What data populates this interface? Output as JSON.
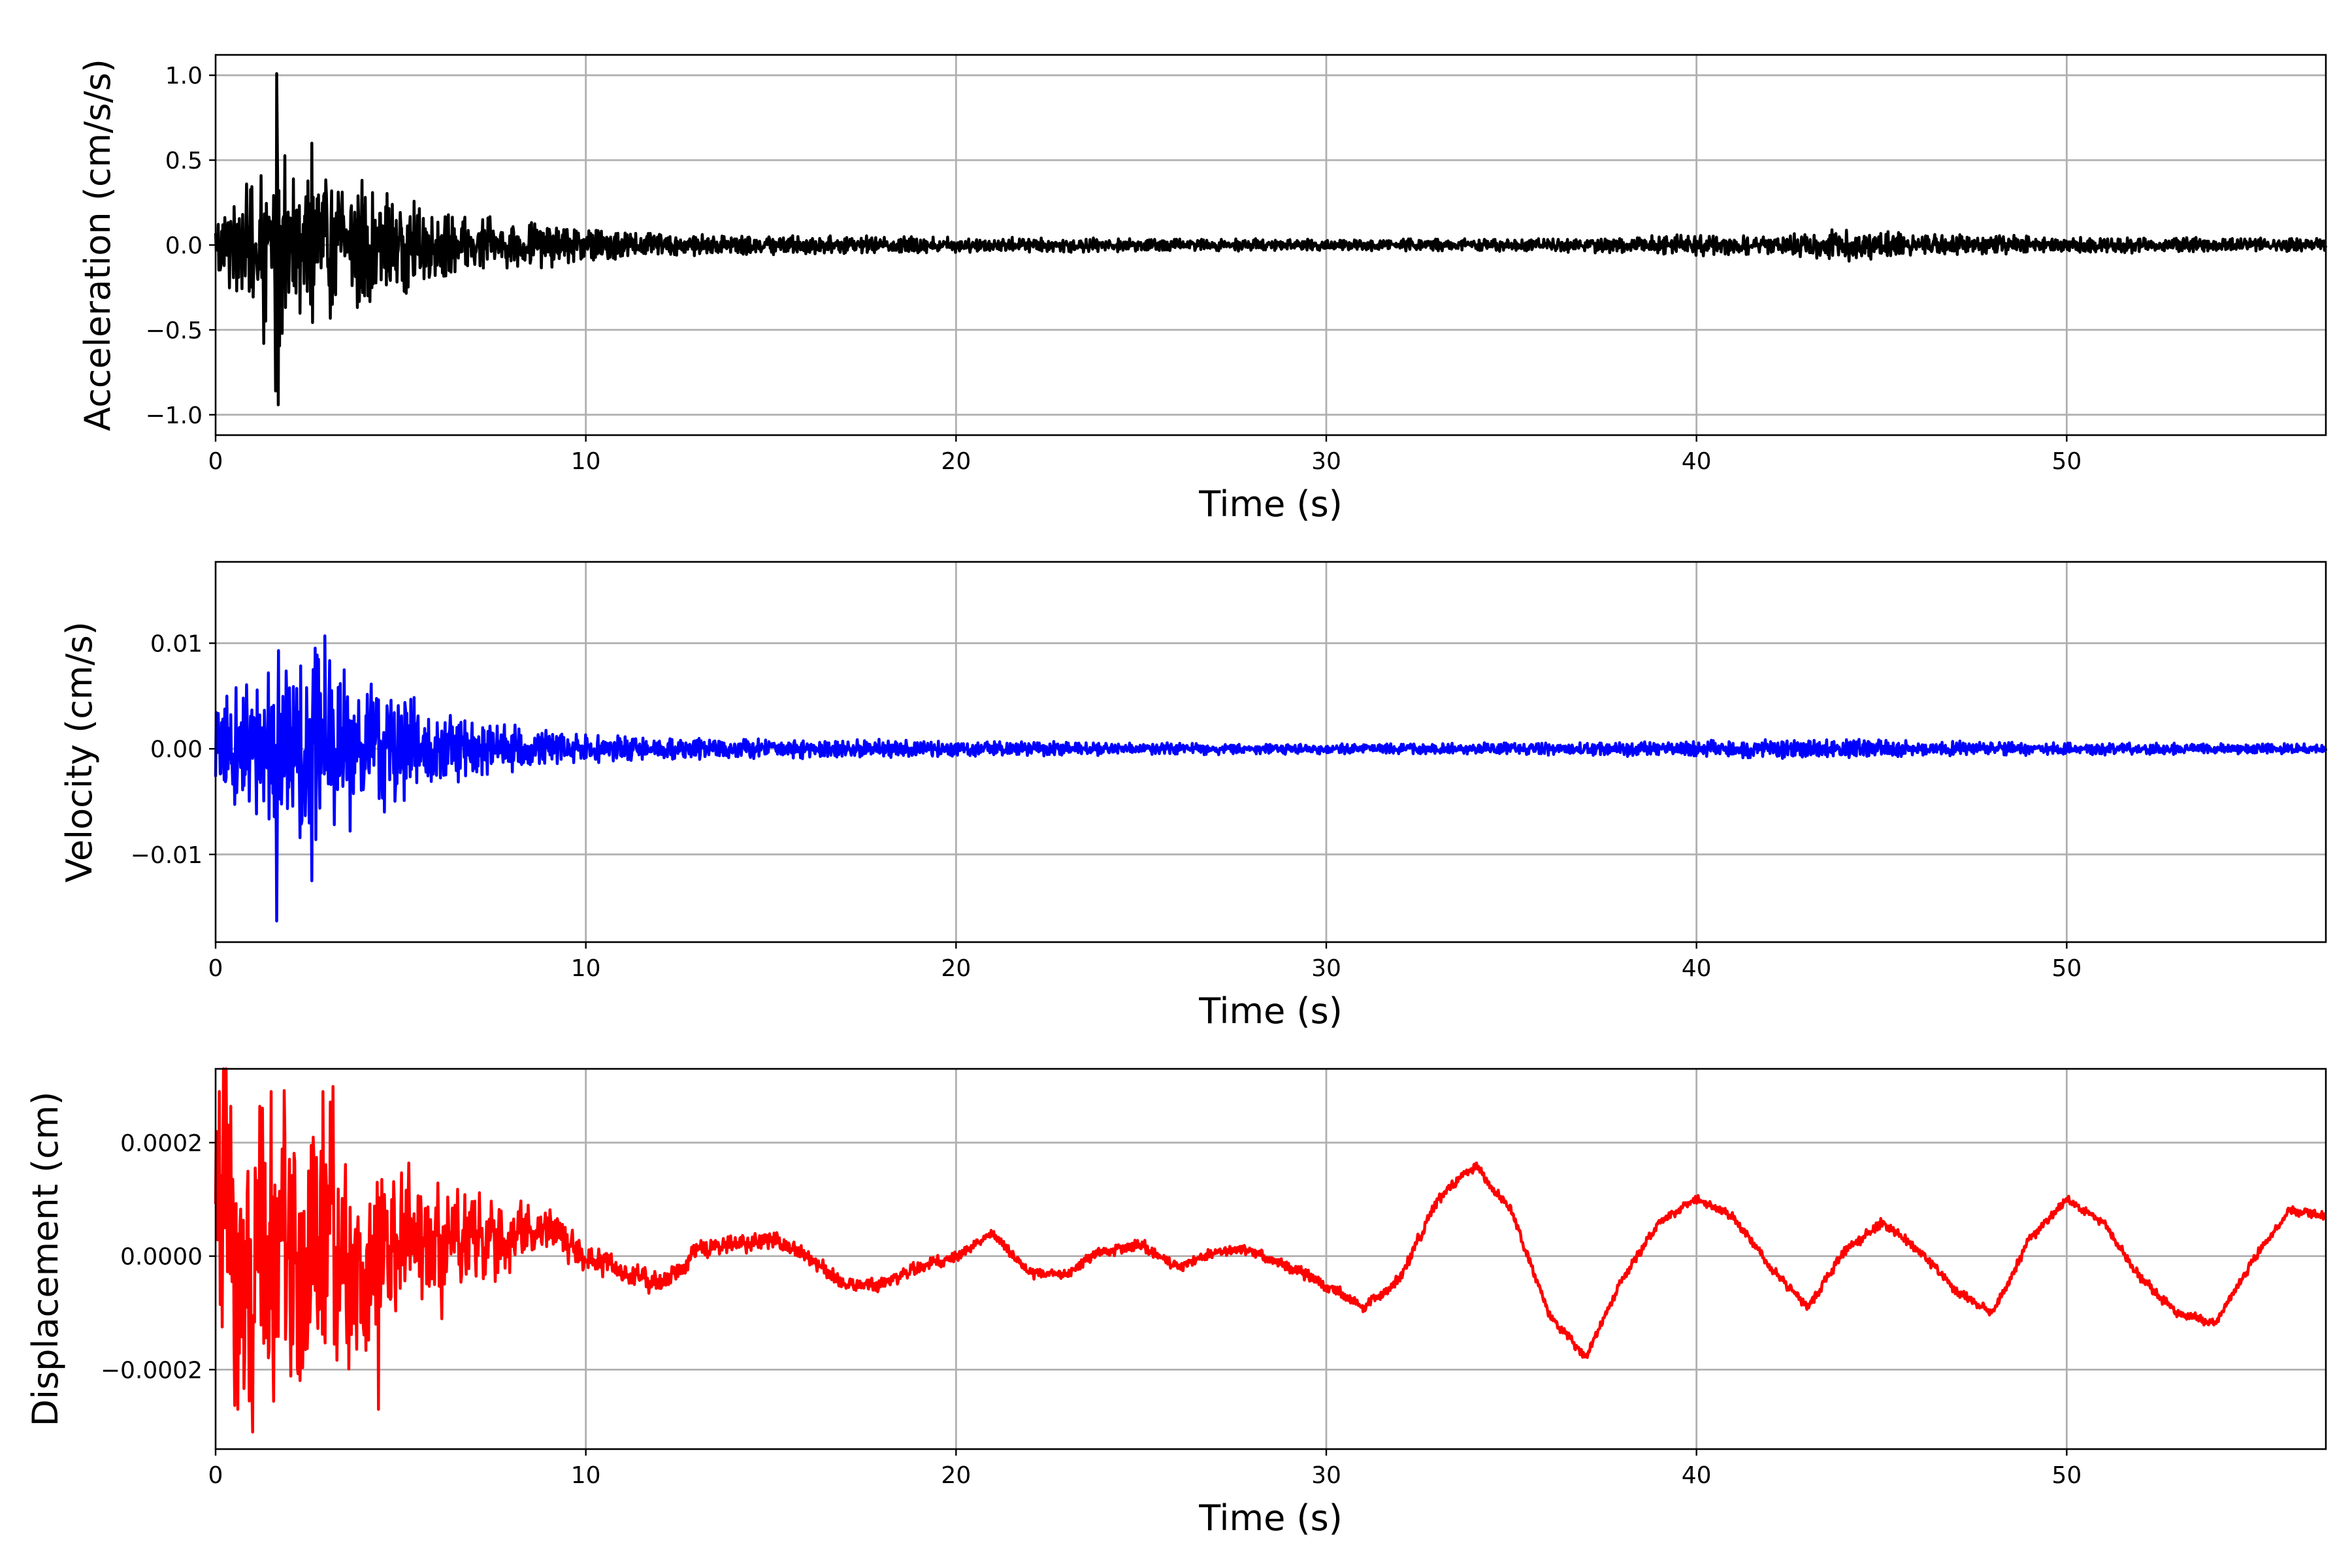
{
  "chart_data": [
    {
      "type": "line",
      "title": "",
      "xlabel": "Time (s)",
      "ylabel": "Acceleration (cm/s/s)",
      "xlim": [
        0,
        57
      ],
      "ylim": [
        -1.12,
        1.12
      ],
      "xticks": [
        0,
        10,
        20,
        30,
        40,
        50
      ],
      "xtick_labels": [
        "0",
        "10",
        "20",
        "30",
        "40",
        "50"
      ],
      "yticks": [
        -1.0,
        -0.5,
        0.0,
        0.5,
        1.0
      ],
      "ytick_labels": [
        "−1.0",
        "−0.5",
        "0.0",
        "0.5",
        "1.0"
      ],
      "grid": true,
      "series": [
        {
          "color": "#000000",
          "x": [
            0,
            0.5,
            1.0,
            1.4,
            1.6,
            1.7,
            2.0,
            2.5,
            2.7,
            3.0,
            3.5,
            4.0,
            4.5,
            5.0,
            6.0,
            7.0,
            8.0,
            9.0,
            10.0,
            12.0,
            15.0,
            20.0,
            25.0,
            30.0,
            35.0,
            38.0,
            40.0,
            42.0,
            44.0,
            46.0,
            50.0,
            55.0,
            57.0
          ],
          "amplitude": [
            0.25,
            0.3,
            0.4,
            0.52,
            0.35,
            1.0,
            0.45,
            0.5,
            0.6,
            0.45,
            0.42,
            0.4,
            0.35,
            0.3,
            0.22,
            0.18,
            0.15,
            0.14,
            0.1,
            0.07,
            0.06,
            0.05,
            0.04,
            0.035,
            0.04,
            0.05,
            0.07,
            0.06,
            0.1,
            0.07,
            0.05,
            0.045,
            0.04
          ],
          "peaks": [
            {
              "x": 1.65,
              "y": 1.01
            },
            {
              "x": 1.62,
              "y": -0.86
            },
            {
              "x": 2.6,
              "y": 0.6
            },
            {
              "x": 1.3,
              "y": -0.58
            }
          ]
        }
      ]
    },
    {
      "type": "line",
      "title": "",
      "xlabel": "Time (s)",
      "ylabel": "Velocity (cm/s)",
      "xlim": [
        0,
        57
      ],
      "ylim": [
        -0.0183,
        0.0177
      ],
      "xticks": [
        0,
        10,
        20,
        30,
        40,
        50
      ],
      "xtick_labels": [
        "0",
        "10",
        "20",
        "30",
        "40",
        "50"
      ],
      "yticks": [
        -0.01,
        0.0,
        0.01
      ],
      "ytick_labels": [
        "−0.01",
        "0.00",
        "0.01"
      ],
      "grid": true,
      "series": [
        {
          "color": "#0000ff",
          "x": [
            0,
            0.5,
            1.0,
            1.6,
            2.0,
            2.6,
            3.0,
            4.0,
            5.0,
            6.0,
            7.0,
            8.0,
            9.0,
            10.0,
            12.0,
            15.0,
            18.0,
            20.0,
            25.0,
            30.0,
            35.0,
            40.0,
            44.0,
            46.0,
            50.0,
            57.0
          ],
          "amplitude": [
            0.005,
            0.006,
            0.008,
            0.0095,
            0.009,
            0.0105,
            0.009,
            0.008,
            0.006,
            0.004,
            0.003,
            0.0025,
            0.002,
            0.0015,
            0.0011,
            0.001,
            0.0009,
            0.0008,
            0.0006,
            0.0005,
            0.0006,
            0.0008,
            0.001,
            0.0008,
            0.0006,
            0.0005
          ],
          "peaks": [
            {
              "x": 1.65,
              "y": -0.0163
            },
            {
              "x": 2.95,
              "y": 0.0107
            },
            {
              "x": 2.6,
              "y": -0.0125
            },
            {
              "x": 1.7,
              "y": 0.0093
            }
          ]
        }
      ]
    },
    {
      "type": "line",
      "title": "",
      "xlabel": "Time (s)",
      "ylabel": "Displacement (cm)",
      "xlim": [
        0,
        57
      ],
      "ylim": [
        -0.00034,
        0.00033
      ],
      "xticks": [
        0,
        10,
        20,
        30,
        40,
        50
      ],
      "xtick_labels": [
        "0",
        "10",
        "20",
        "30",
        "40",
        "50"
      ],
      "yticks": [
        -0.0002,
        0.0,
        0.0002
      ],
      "ytick_labels": [
        "−0.0002",
        "0.0000",
        "0.0002"
      ],
      "grid": true,
      "series": [
        {
          "color": "#ff0000",
          "x": [
            0,
            1,
            2,
            3,
            4,
            5,
            6,
            7,
            8,
            9,
            10,
            11,
            12,
            13,
            14,
            15,
            16,
            17,
            18,
            19,
            20,
            21,
            22,
            23,
            24,
            25,
            26,
            27,
            28,
            29,
            30,
            31,
            32,
            33,
            34,
            35,
            36,
            37,
            38,
            39,
            40,
            41,
            42,
            43,
            44,
            45,
            46,
            47,
            48,
            49,
            50,
            51,
            52,
            53,
            54,
            55,
            56,
            57
          ],
          "y": [
            0.0001,
            -5e-05,
            0.0,
            5e-05,
            -2e-05,
            2e-05,
            0.0,
            2e-05,
            4e-05,
            5e-05,
            0.0,
            -3e-05,
            -5e-05,
            1e-05,
            2e-05,
            3e-05,
            0.0,
            -5e-05,
            -5e-05,
            -2e-05,
            0.0,
            4e-05,
            -3e-05,
            -3e-05,
            1e-05,
            2e-05,
            -2e-05,
            1e-05,
            1e-05,
            -2e-05,
            -5e-05,
            -9e-05,
            -4e-05,
            0.0001,
            0.00016,
            8e-05,
            -0.0001,
            -0.00018,
            -4e-05,
            6e-05,
            0.0001,
            7e-05,
            -2e-05,
            -9e-05,
            1e-05,
            6e-05,
            1e-05,
            -6e-05,
            -0.0001,
            3e-05,
            0.0001,
            6e-05,
            -4e-05,
            -0.0001,
            -0.00012,
            -1e-05,
            8e-05,
            7e-05
          ],
          "noise_amplitude": [
            0.00029,
            0.00028,
            0.00026,
            0.00024,
            0.00018,
            0.00013,
            0.0001,
            8e-05,
            6e-05,
            4e-05,
            3e-05,
            2e-05,
            1.8e-05,
            1.6e-05,
            1.5e-05,
            1.4e-05,
            1.3e-05,
            1.2e-05,
            1.2e-05,
            1.1e-05,
            1e-05,
            1e-05,
            1e-05,
            1e-05,
            1e-05,
            1e-05,
            1e-05,
            1e-05,
            1e-05,
            1e-05,
            1e-05,
            1e-05,
            1e-05,
            1e-05,
            8e-06,
            8e-06,
            8e-06,
            8e-06,
            8e-06,
            8e-06,
            8e-06,
            8e-06,
            8e-06,
            8e-06,
            1e-05,
            1e-05,
            8e-06,
            8e-06,
            8e-06,
            8e-06,
            8e-06,
            8e-06,
            8e-06,
            8e-06,
            8e-06,
            8e-06,
            8e-06,
            8e-06
          ],
          "peaks": [
            {
              "x": 0.6,
              "y": -0.00027
            },
            {
              "x": 1.0,
              "y": -0.00031
            },
            {
              "x": 1.5,
              "y": 0.00029
            },
            {
              "x": 0.1,
              "y": 0.00029
            },
            {
              "x": 2.9,
              "y": 0.00029
            },
            {
              "x": 4.4,
              "y": -0.00027
            }
          ]
        }
      ]
    }
  ]
}
